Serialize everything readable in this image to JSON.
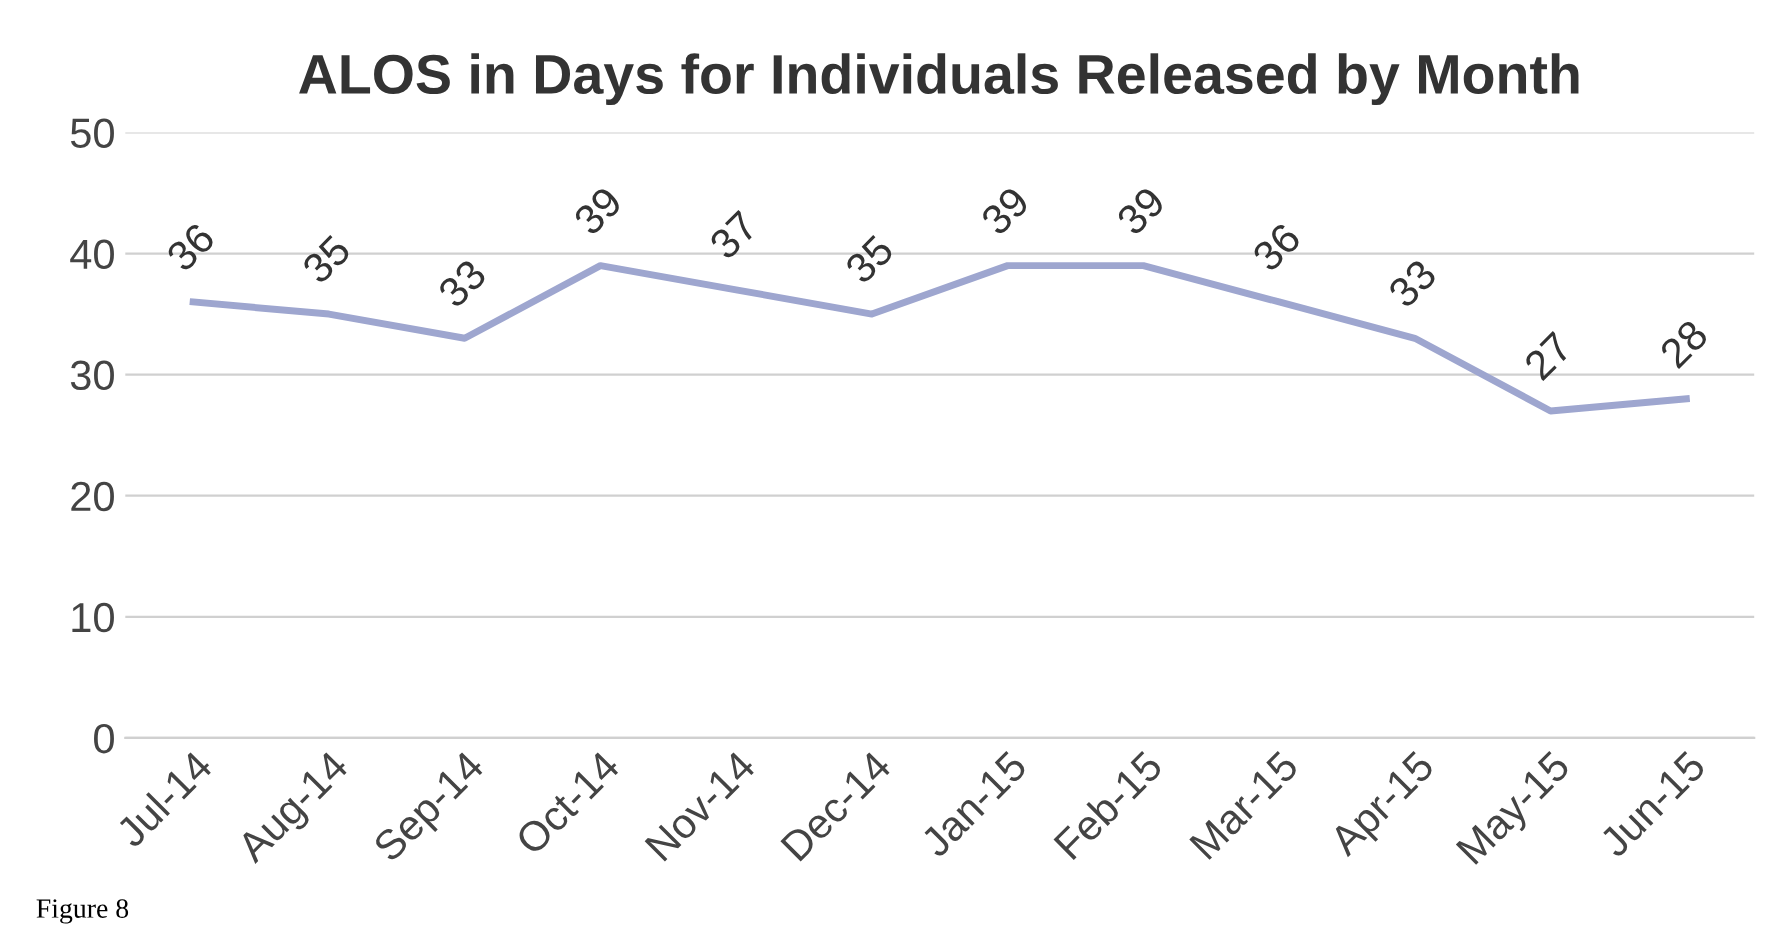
{
  "chart_data": {
    "type": "line",
    "title": "ALOS in Days for Individuals Released by Month",
    "categories": [
      "Jul-14",
      "Aug-14",
      "Sep-14",
      "Oct-14",
      "Nov-14",
      "Dec-14",
      "Jan-15",
      "Feb-15",
      "Mar-15",
      "Apr-15",
      "May-15",
      "Jun-15"
    ],
    "series": [
      {
        "color": "#9ea6cf",
        "values": [
          36,
          35,
          33,
          39,
          37,
          35,
          39,
          39,
          36,
          33,
          27,
          28
        ]
      }
    ],
    "ylim": [
      0,
      50
    ],
    "yticks": [
      0,
      10,
      20,
      30,
      40,
      50
    ],
    "grid": "y",
    "data_labels": true,
    "marker": "none",
    "line_style": "solid",
    "annotations": [
      "Figure 8"
    ]
  }
}
